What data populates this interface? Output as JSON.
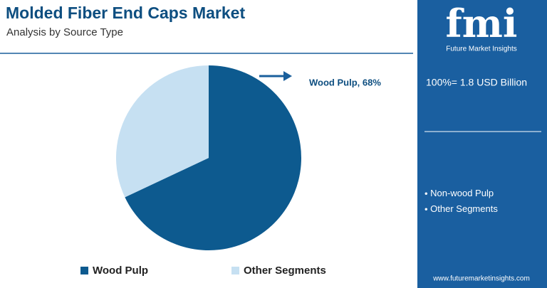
{
  "chart_data": {
    "type": "pie",
    "title": "Molded Fiber End Caps Market",
    "subtitle": "Analysis by Source Type",
    "categories": [
      "Wood Pulp",
      "Other Segments"
    ],
    "values": [
      68,
      32
    ],
    "value_labels": [
      "Wood Pulp, 68%",
      null
    ],
    "colors": [
      "#0d5a8f",
      "#c6e0f2"
    ],
    "legend": "bottom"
  },
  "panel": {
    "logo": "fmi",
    "brand": "Future Market Insights",
    "total": "100%= 1.8 USD Billion",
    "segments": [
      "Non-wood Pulp",
      "Other Segments"
    ],
    "website": "www.futuremarketinsights.com"
  }
}
